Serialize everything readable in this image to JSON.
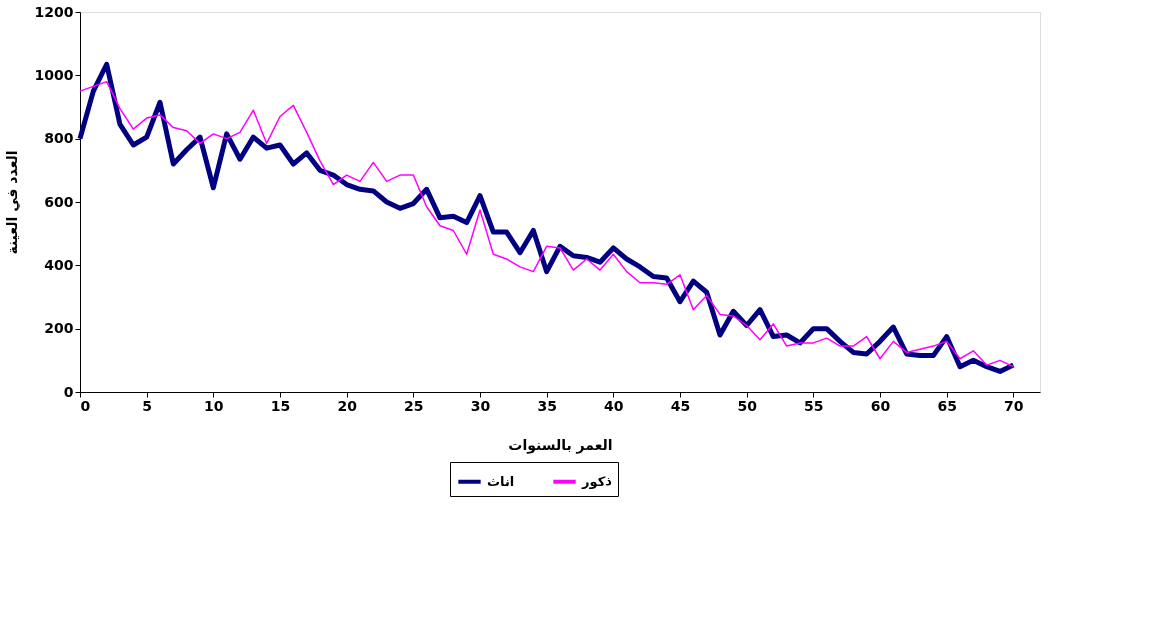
{
  "chart_data": {
    "type": "line",
    "xlabel": "العمر بالسنوات",
    "ylabel": "العدد في العينة",
    "x": [
      0,
      1,
      2,
      3,
      4,
      5,
      6,
      7,
      8,
      9,
      10,
      11,
      12,
      13,
      14,
      15,
      16,
      17,
      18,
      19,
      20,
      21,
      22,
      23,
      24,
      25,
      26,
      27,
      28,
      29,
      30,
      31,
      32,
      33,
      34,
      35,
      36,
      37,
      38,
      39,
      40,
      41,
      42,
      43,
      44,
      45,
      46,
      47,
      48,
      49,
      50,
      51,
      52,
      53,
      54,
      55,
      56,
      57,
      58,
      59,
      60,
      61,
      62,
      63,
      64,
      65,
      66,
      67,
      68,
      69,
      70
    ],
    "series": [
      {
        "name": "اناث",
        "color": "#000080",
        "values": [
          800,
          950,
          1035,
          845,
          780,
          805,
          915,
          720,
          765,
          805,
          645,
          815,
          735,
          805,
          770,
          780,
          720,
          755,
          700,
          685,
          655,
          640,
          635,
          600,
          580,
          595,
          640,
          550,
          555,
          535,
          620,
          505,
          505,
          440,
          510,
          380,
          460,
          430,
          425,
          410,
          455,
          420,
          395,
          365,
          360,
          285,
          350,
          315,
          180,
          255,
          210,
          260,
          175,
          180,
          155,
          200,
          200,
          160,
          125,
          120,
          160,
          205,
          120,
          115,
          115,
          175,
          80,
          100,
          80,
          65,
          85
        ]
      },
      {
        "name": "ذكور",
        "color": "#ff00ff",
        "values": [
          950,
          965,
          980,
          895,
          830,
          865,
          875,
          835,
          825,
          785,
          815,
          800,
          820,
          890,
          785,
          870,
          905,
          820,
          730,
          655,
          685,
          665,
          725,
          665,
          685,
          685,
          585,
          525,
          510,
          435,
          575,
          435,
          420,
          395,
          380,
          460,
          455,
          385,
          420,
          385,
          435,
          380,
          345,
          345,
          340,
          370,
          260,
          305,
          245,
          240,
          210,
          165,
          215,
          145,
          155,
          155,
          170,
          145,
          145,
          175,
          105,
          160,
          125,
          135,
          145,
          160,
          105,
          130,
          85,
          100,
          80
        ]
      }
    ],
    "xlim": [
      0,
      72
    ],
    "xticks": [
      0,
      5,
      10,
      15,
      20,
      25,
      30,
      35,
      40,
      45,
      50,
      55,
      60,
      65,
      70
    ],
    "ylim": [
      0,
      1200
    ],
    "yticks": [
      0,
      200,
      400,
      600,
      800,
      1000,
      1200
    ],
    "grid": false,
    "legend": "bottom",
    "marker": "none",
    "line_style": "solid"
  }
}
